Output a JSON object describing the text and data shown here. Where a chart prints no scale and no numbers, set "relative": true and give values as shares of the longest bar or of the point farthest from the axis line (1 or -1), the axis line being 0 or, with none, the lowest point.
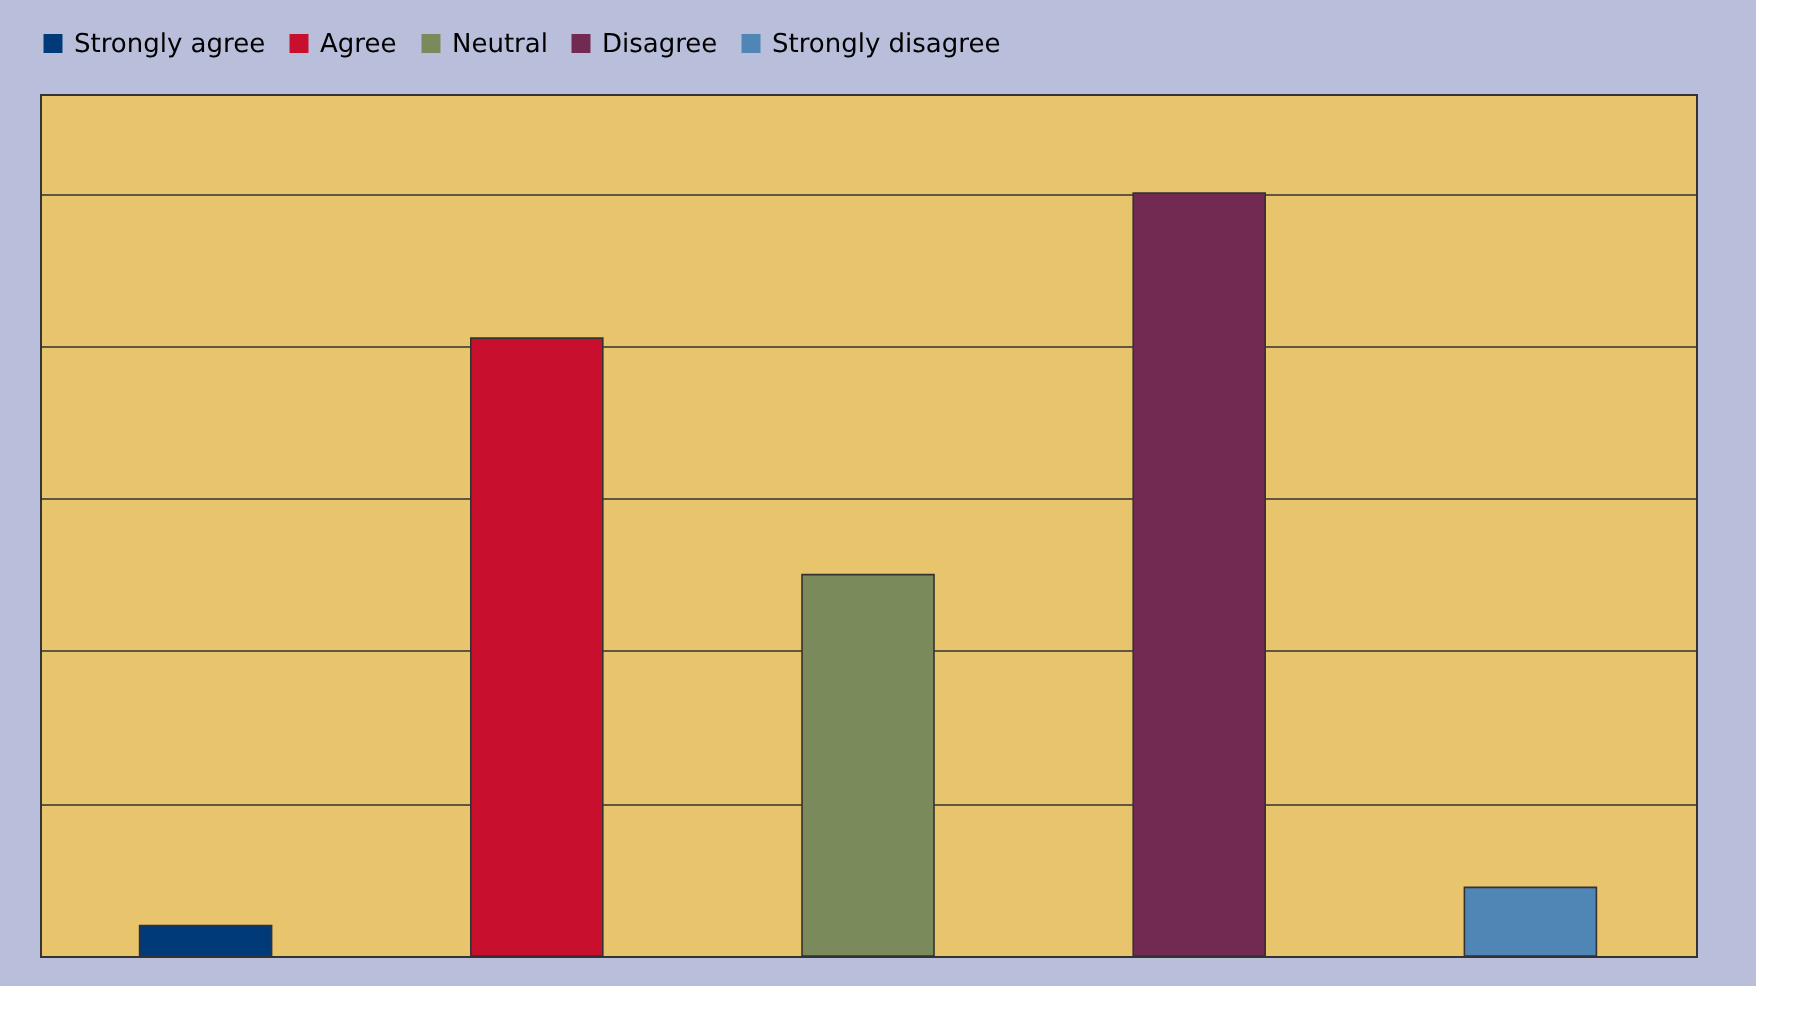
{
  "chart_data": {
    "type": "bar",
    "relative": true,
    "stacked": true,
    "categories": [
      null,
      null,
      null,
      null,
      null
    ],
    "series": [
      {
        "name": "Strongly agree",
        "color": "#003a78",
        "values": [
          0.04,
          null,
          null,
          null,
          null
        ]
      },
      {
        "name": "Agree",
        "color": "#c8102e",
        "values": [
          null,
          0.81,
          null,
          null,
          null
        ]
      },
      {
        "name": "Neutral",
        "color": "#7a8a5a",
        "values": [
          null,
          null,
          0.5,
          null,
          null
        ]
      },
      {
        "name": "Disagree",
        "color": "#722a52",
        "values": [
          null,
          null,
          null,
          1,
          null
        ]
      },
      {
        "name": "Strongly disagree",
        "color": "#4f86b5",
        "values": [
          null,
          null,
          null,
          null,
          0.09
        ]
      }
    ],
    "grid": "y",
    "legend": "top"
  }
}
